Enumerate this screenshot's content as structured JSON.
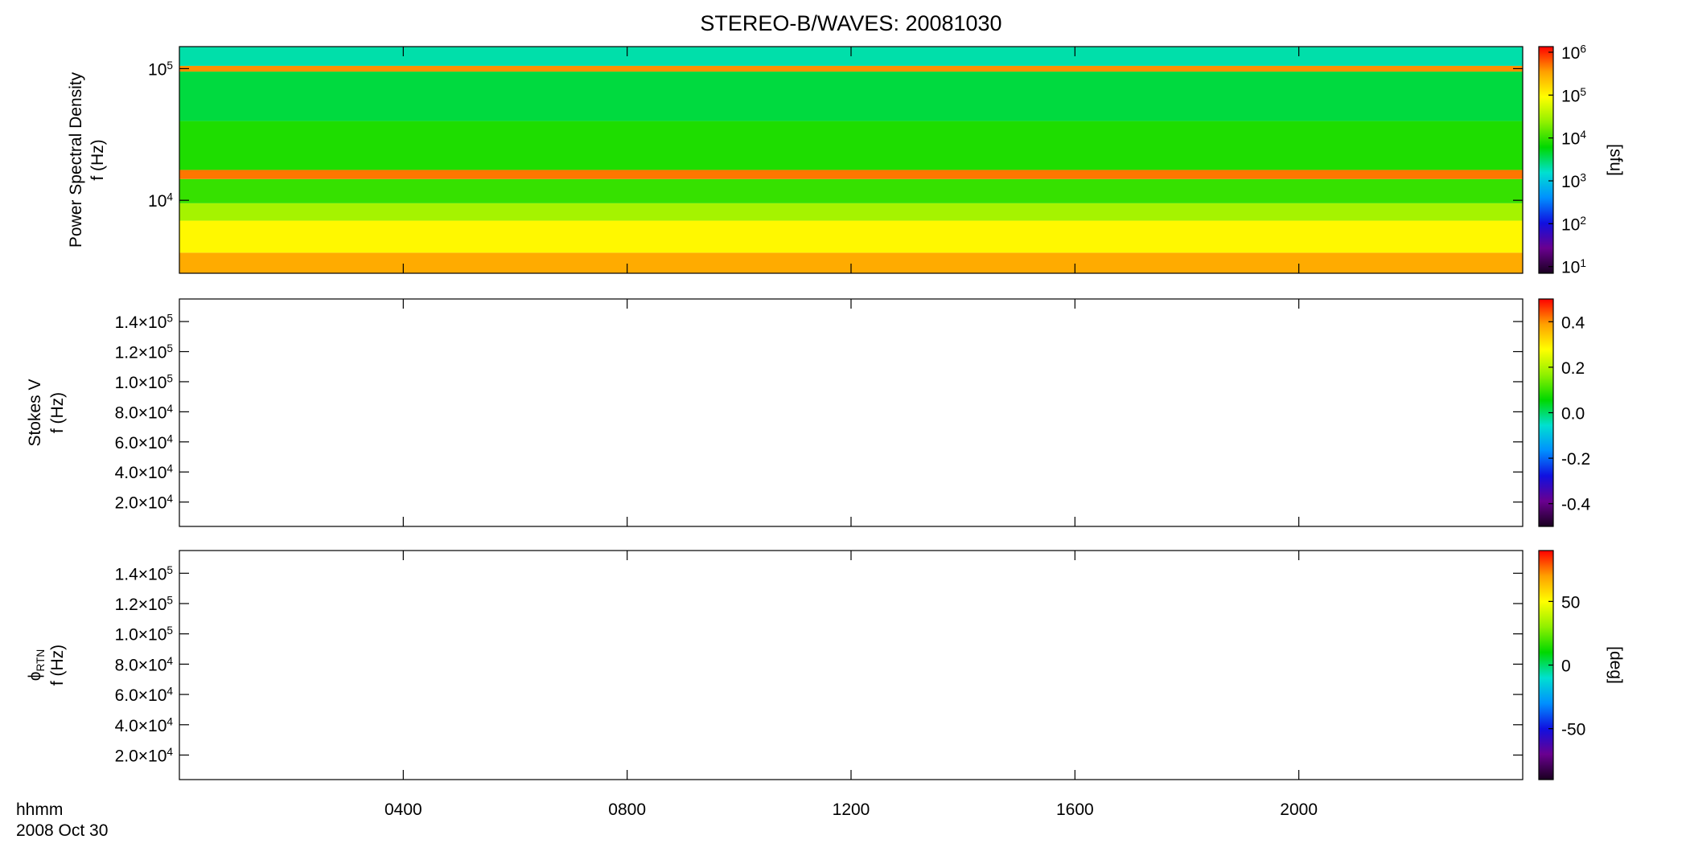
{
  "title": "STEREO-B/WAVES: 20081030",
  "x_axis": {
    "xlim": [
      0,
      24
    ],
    "xticks": [
      {
        "value": 4,
        "label": "0400"
      },
      {
        "value": 8,
        "label": "0800"
      },
      {
        "value": 12,
        "label": "1200"
      },
      {
        "value": 16,
        "label": "1600"
      },
      {
        "value": 20,
        "label": "2000"
      }
    ],
    "label": [
      "hhmm",
      "2008 Oct 30"
    ]
  },
  "colormap": [
    "#1a0020",
    "#6a0090",
    "#1010e0",
    "#0090ff",
    "#00e0d0",
    "#00d800",
    "#90f000",
    "#ffff00",
    "#ffa000",
    "#ff0000"
  ],
  "chart_data": [
    {
      "type": "heatmap",
      "ylabel": [
        "Power Spectral Density",
        "f (Hz)"
      ],
      "ylim": [
        2790,
        147000
      ],
      "ylog": true,
      "yticks": [
        {
          "value": 10000,
          "label": "10^4"
        },
        {
          "value": 100000,
          "label": "10^5"
        }
      ],
      "ybins": [
        2790,
        4000,
        7000,
        9500,
        14500,
        17000,
        40000,
        95000,
        105000,
        147000
      ],
      "values": [
        300000,
        100000,
        30000,
        10000,
        500000,
        8000,
        4000,
        400000,
        2000
      ],
      "clim": [
        7,
        1350000
      ],
      "clog": true,
      "cticks": [
        {
          "value": 10,
          "label": "10^1"
        },
        {
          "value": 100,
          "label": "10^2"
        },
        {
          "value": 1000,
          "label": "10^3"
        },
        {
          "value": 10000,
          "label": "10^4"
        },
        {
          "value": 100000,
          "label": "10^5"
        },
        {
          "value": 1000000,
          "label": "10^6"
        }
      ],
      "clabel": "[sfu]"
    },
    {
      "type": "heatmap",
      "ylabel": [
        "Stokes V",
        "f (Hz)"
      ],
      "ylim": [
        3800,
        155000
      ],
      "ylog": false,
      "yticks": [
        {
          "value": 20000,
          "label": "2.0×10^4"
        },
        {
          "value": 40000,
          "label": "4.0×10^4"
        },
        {
          "value": 60000,
          "label": "6.0×10^4"
        },
        {
          "value": 80000,
          "label": "8.0×10^4"
        },
        {
          "value": 100000,
          "label": "1.0×10^5"
        },
        {
          "value": 120000,
          "label": "1.2×10^5"
        },
        {
          "value": 140000,
          "label": "1.4×10^5"
        }
      ],
      "clim": [
        -0.5,
        0.5
      ],
      "clog": false,
      "cticks": [
        -0.4,
        -0.2,
        {
          "value": 0,
          "label": "0.0"
        },
        0.2,
        0.4
      ]
    },
    {
      "type": "heatmap",
      "ylabel": [
        "ϕ_RTN",
        "f (Hz)"
      ],
      "ylim": [
        3800,
        155000
      ],
      "ylog": false,
      "yticks": [
        {
          "value": 20000,
          "label": "2.0×10^4"
        },
        {
          "value": 40000,
          "label": "4.0×10^4"
        },
        {
          "value": 60000,
          "label": "6.0×10^4"
        },
        {
          "value": 80000,
          "label": "8.0×10^4"
        },
        {
          "value": 100000,
          "label": "1.0×10^5"
        },
        {
          "value": 120000,
          "label": "1.2×10^5"
        },
        {
          "value": 140000,
          "label": "1.4×10^5"
        }
      ],
      "clim": [
        -90,
        90
      ],
      "clog": false,
      "cticks": [
        -50,
        0,
        50
      ],
      "clabel": "[deg]"
    }
  ]
}
